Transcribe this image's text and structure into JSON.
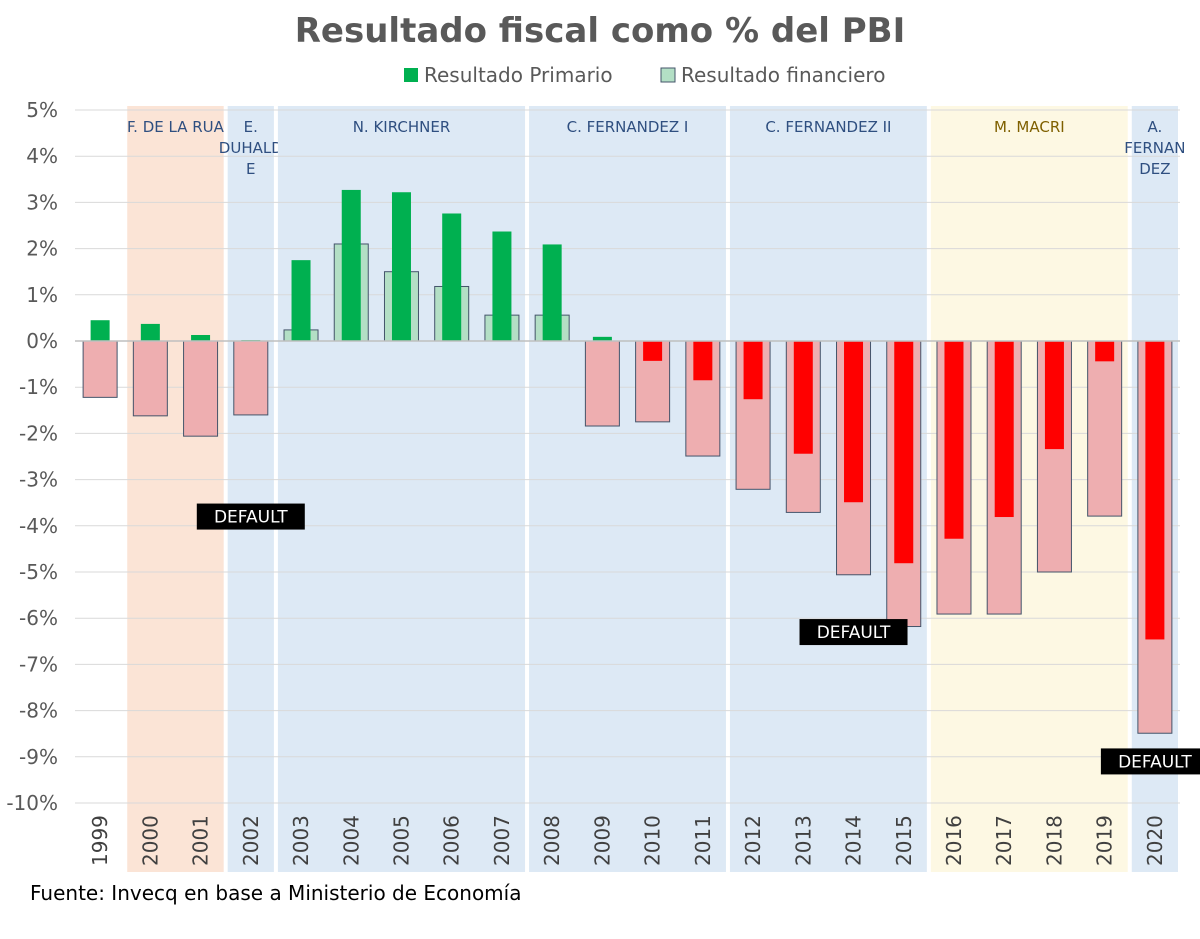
{
  "chart_data": {
    "type": "bar",
    "title": "Resultado fiscal como % del PBI",
    "source": "Fuente: Invecq en base a Ministerio de Economía",
    "ylim": [
      -10,
      5
    ],
    "yticks": [
      "5%",
      "4%",
      "3%",
      "2%",
      "1%",
      "0%",
      "-1%",
      "-2%",
      "-3%",
      "-4%",
      "-5%",
      "-6%",
      "-7%",
      "-8%",
      "-9%",
      "-10%"
    ],
    "categories": [
      "1999",
      "2000",
      "2001",
      "2002",
      "2003",
      "2004",
      "2005",
      "2006",
      "2007",
      "2008",
      "2009",
      "2010",
      "2011",
      "2012",
      "2013",
      "2014",
      "2015",
      "2016",
      "2017",
      "2018",
      "2019",
      "2020"
    ],
    "series": [
      {
        "name": "Resultado Primario",
        "color_positive": "#00b050",
        "color_negative": "#ff0000",
        "values": [
          0.45,
          0.37,
          0.13,
          0.02,
          1.75,
          3.27,
          3.22,
          2.76,
          2.37,
          2.09,
          0.09,
          -0.43,
          -0.85,
          -1.26,
          -2.44,
          -3.49,
          -4.81,
          -4.28,
          -3.81,
          -2.34,
          -0.44,
          -6.46
        ]
      },
      {
        "name": "Resultado financiero",
        "color_positive": "#b3dfc5",
        "color_negative": "#eeaeb0",
        "values": [
          -1.22,
          -1.62,
          -2.06,
          -1.6,
          0.24,
          2.1,
          1.5,
          1.18,
          0.56,
          0.56,
          -1.84,
          -1.75,
          -2.49,
          -3.21,
          -3.71,
          -5.06,
          -6.18,
          -5.91,
          -5.91,
          -5.0,
          -3.79,
          -8.49
        ]
      }
    ],
    "periods": [
      {
        "label": [
          "F. DE LA RUA"
        ],
        "from": 1,
        "to": 2,
        "color": "#fbe4d6",
        "text_color": "#2f4f80"
      },
      {
        "label": [
          "E.",
          "DUHALD",
          "E"
        ],
        "from": 3,
        "to": 3,
        "color": "#dde9f5",
        "text_color": "#2f4f80"
      },
      {
        "label": [
          "N. KIRCHNER"
        ],
        "from": 4,
        "to": 8,
        "color": "#dde9f5",
        "text_color": "#2f4f80"
      },
      {
        "label": [
          "C. FERNANDEZ I"
        ],
        "from": 9,
        "to": 12,
        "color": "#dde9f5",
        "text_color": "#2f4f80"
      },
      {
        "label": [
          "C. FERNANDEZ II"
        ],
        "from": 13,
        "to": 16,
        "color": "#dde9f5",
        "text_color": "#2f4f80"
      },
      {
        "label": [
          "M. MACRI"
        ],
        "from": 17,
        "to": 20,
        "color": "#fdf8e3",
        "text_color": "#7f6000"
      },
      {
        "label": [
          "A.",
          "FERNAN",
          "DEZ"
        ],
        "from": 21,
        "to": 21,
        "color": "#dde9f5",
        "text_color": "#2f4f80"
      }
    ],
    "annotations": [
      {
        "text": "DEFAULT",
        "category_index": 3,
        "y": -3.8
      },
      {
        "text": "DEFAULT",
        "category_index": 15,
        "y": -6.3
      },
      {
        "text": "DEFAULT",
        "category_index": 21,
        "y": -9.1
      }
    ],
    "legend_position": "top-center",
    "grid": true
  }
}
